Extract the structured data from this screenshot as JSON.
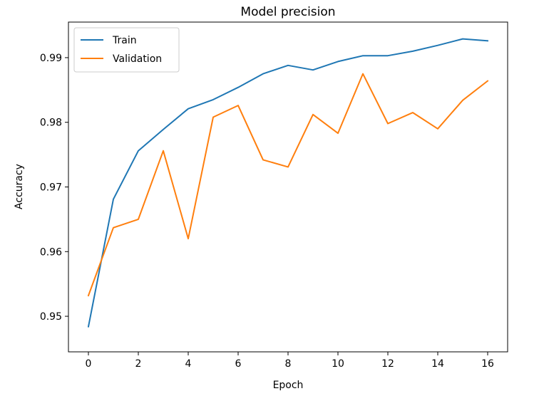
{
  "chart_data": {
    "type": "line",
    "title": "Model precision",
    "xlabel": "Epoch",
    "ylabel": "Accuracy",
    "x": [
      0,
      1,
      2,
      3,
      4,
      5,
      6,
      7,
      8,
      9,
      10,
      11,
      12,
      13,
      14,
      15,
      16
    ],
    "xlim": [
      -0.8,
      16.8
    ],
    "ylim": [
      0.9445,
      0.9955
    ],
    "xticks": [
      0,
      2,
      4,
      6,
      8,
      10,
      12,
      14,
      16
    ],
    "yticks": [
      0.95,
      0.96,
      0.97,
      0.98,
      0.99
    ],
    "xtick_labels": [
      "0",
      "2",
      "4",
      "6",
      "8",
      "10",
      "12",
      "14",
      "16"
    ],
    "ytick_labels": [
      "0.95",
      "0.96",
      "0.97",
      "0.98",
      "0.99"
    ],
    "legend_position": "top-left",
    "series": [
      {
        "name": "Train",
        "color": "#1f77b4",
        "values": [
          0.9484,
          0.9681,
          0.9756,
          0.9789,
          0.9821,
          0.9835,
          0.9854,
          0.9875,
          0.9888,
          0.9881,
          0.9894,
          0.9903,
          0.9903,
          0.991,
          0.9919,
          0.9929,
          0.9926
        ]
      },
      {
        "name": "Validation",
        "color": "#ff7f0e",
        "values": [
          0.9532,
          0.9637,
          0.965,
          0.9756,
          0.962,
          0.9808,
          0.9826,
          0.9742,
          0.9731,
          0.9812,
          0.9783,
          0.9875,
          0.9798,
          0.9815,
          0.979,
          0.9834,
          0.9864
        ]
      }
    ]
  }
}
